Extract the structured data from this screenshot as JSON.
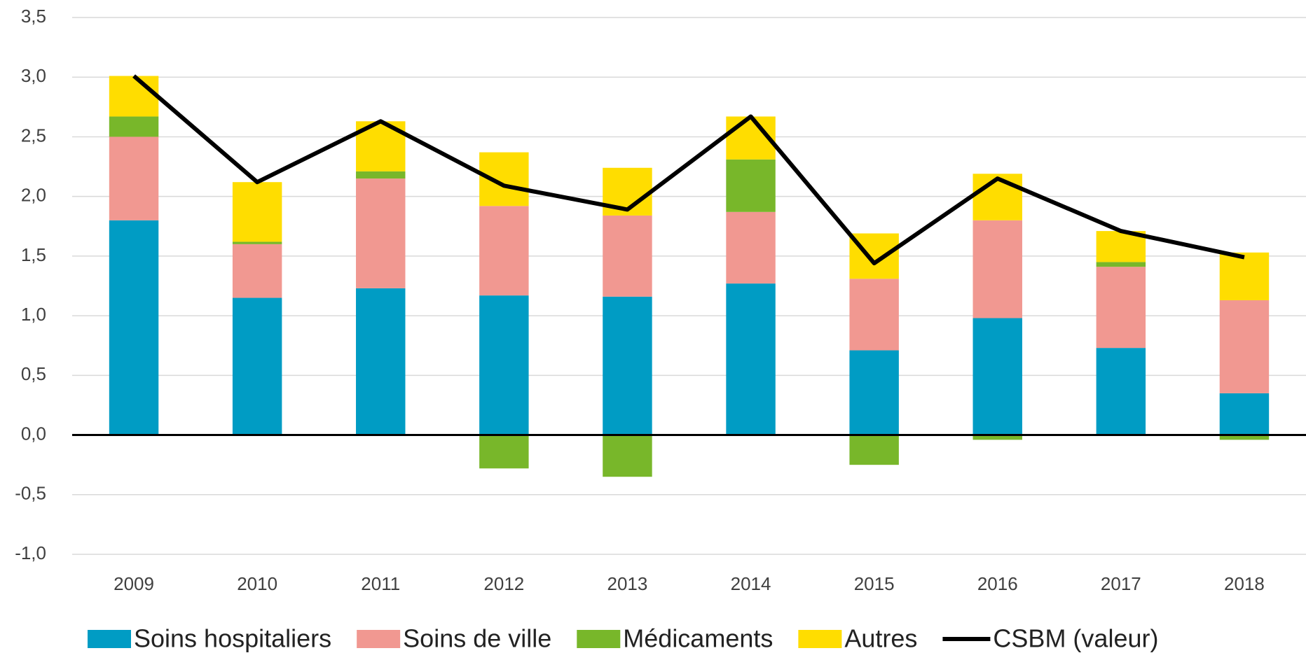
{
  "chart_data": {
    "type": "bar",
    "categories": [
      "2009",
      "2010",
      "2011",
      "2012",
      "2013",
      "2014",
      "2015",
      "2016",
      "2017",
      "2018"
    ],
    "series": [
      {
        "name": "Soins hospitaliers",
        "color": "#009cc4",
        "values": [
          1.8,
          1.15,
          1.23,
          1.17,
          1.16,
          1.27,
          0.71,
          0.98,
          0.73,
          0.35
        ]
      },
      {
        "name": "Soins de ville",
        "color": "#f19891",
        "values": [
          0.7,
          0.45,
          0.92,
          0.75,
          0.68,
          0.6,
          0.6,
          0.82,
          0.68,
          0.78
        ]
      },
      {
        "name": "Médicaments",
        "color": "#78b72a",
        "values": [
          0.17,
          0.02,
          0.06,
          -0.28,
          -0.35,
          0.44,
          -0.25,
          -0.04,
          0.04,
          -0.04
        ]
      },
      {
        "name": "Autres",
        "color": "#ffdd00",
        "values": [
          0.34,
          0.5,
          0.42,
          0.45,
          0.4,
          0.36,
          0.38,
          0.39,
          0.26,
          0.4
        ]
      },
      {
        "name": "CSBM (valeur)",
        "color": "#000000",
        "type": "line",
        "values": [
          3.01,
          2.12,
          2.63,
          2.09,
          1.89,
          2.67,
          1.44,
          2.15,
          1.71,
          1.49
        ]
      }
    ],
    "stacked": true,
    "ylim": [
      -1.0,
      3.5
    ],
    "yticks": [
      {
        "value": -1.0,
        "label": "-1,0"
      },
      {
        "value": -0.5,
        "label": "-0,5"
      },
      {
        "value": 0,
        "label": "0,0"
      },
      {
        "value": 0.5,
        "label": "0,5"
      },
      {
        "value": 1.0,
        "label": "1,0"
      },
      {
        "value": 1.5,
        "label": "1,5"
      },
      {
        "value": 2.0,
        "label": "2,0"
      },
      {
        "value": 2.5,
        "label": "2,5"
      },
      {
        "value": 3.0,
        "label": "3,0"
      },
      {
        "value": 3.5,
        "label": "3,5"
      }
    ],
    "grid": true,
    "legend": "bottom"
  }
}
